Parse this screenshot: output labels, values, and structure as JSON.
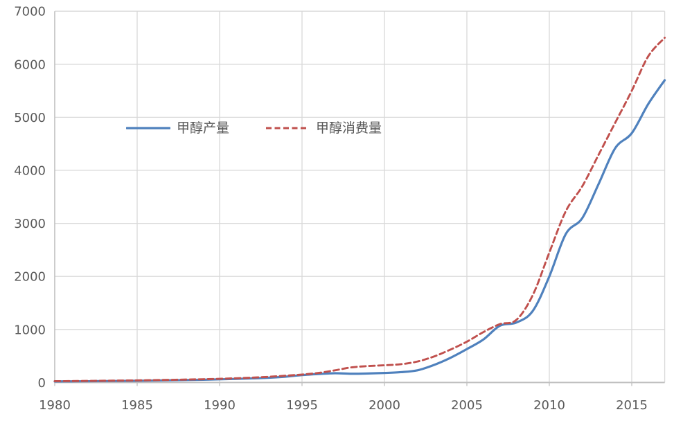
{
  "chart_data": {
    "type": "line",
    "title": "",
    "xlabel": "",
    "ylabel": "",
    "xlim": [
      1980,
      2017
    ],
    "ylim": [
      0,
      7000
    ],
    "xticks": [
      1980,
      1985,
      1990,
      1995,
      2000,
      2005,
      2010,
      2015
    ],
    "yticks": [
      0,
      1000,
      2000,
      3000,
      4000,
      5000,
      6000,
      7000
    ],
    "grid": true,
    "legend_position": "inside-top-left",
    "x": [
      1980,
      1981,
      1982,
      1983,
      1984,
      1985,
      1986,
      1987,
      1988,
      1989,
      1990,
      1991,
      1992,
      1993,
      1994,
      1995,
      1996,
      1997,
      1998,
      1999,
      2000,
      2001,
      2002,
      2003,
      2004,
      2005,
      2006,
      2007,
      2008,
      2009,
      2010,
      2011,
      2012,
      2013,
      2014,
      2015,
      2016,
      2017
    ],
    "series": [
      {
        "key": "production",
        "name": "甲醇产量",
        "color": "#4F81BD",
        "style": "solid",
        "values": [
          20,
          22,
          24,
          27,
          30,
          33,
          37,
          42,
          47,
          53,
          60,
          68,
          78,
          90,
          110,
          140,
          160,
          175,
          165,
          170,
          180,
          195,
          230,
          330,
          465,
          630,
          810,
          1070,
          1130,
          1350,
          2000,
          2800,
          3100,
          3750,
          4420,
          4700,
          5250,
          5700
        ]
      },
      {
        "key": "consumption",
        "name": "甲醇消费量",
        "color": "#C0504D",
        "style": "dashed",
        "values": [
          25,
          27,
          30,
          33,
          37,
          40,
          45,
          50,
          56,
          62,
          70,
          80,
          92,
          108,
          128,
          150,
          180,
          230,
          285,
          310,
          325,
          345,
          395,
          490,
          620,
          770,
          950,
          1100,
          1180,
          1650,
          2450,
          3230,
          3700,
          4300,
          4900,
          5500,
          6150,
          6500
        ]
      }
    ]
  },
  "colors": {
    "gridline": "#D9D9D9",
    "axis": "#BFBFBF",
    "tick_text": "#595959",
    "background": "#FFFFFF"
  }
}
